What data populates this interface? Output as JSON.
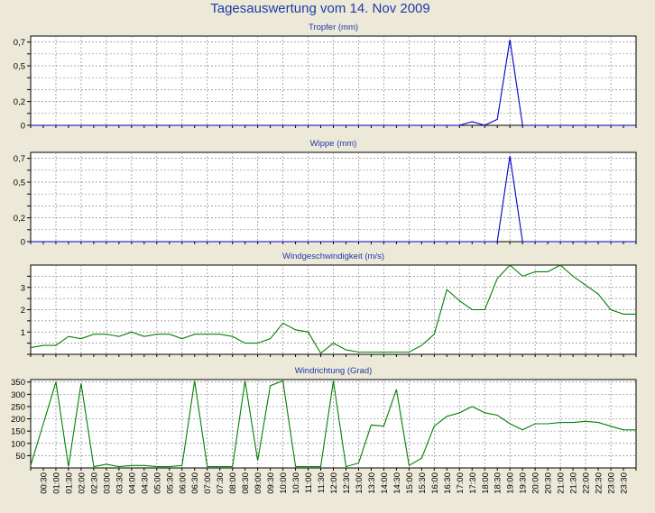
{
  "page": {
    "title": "Tagesauswertung vom 14. Nov 2009"
  },
  "colors": {
    "background": "#ece9d8",
    "plot_background": "#ffffff",
    "grid": "#888888",
    "axis": "#000000",
    "title_text": "#1f3aa8",
    "series_blue": "#0000cc",
    "series_green": "#008000"
  },
  "time_labels": [
    "00:30",
    "01:00",
    "01:30",
    "02:00",
    "02:30",
    "03:00",
    "03:30",
    "04:00",
    "04:30",
    "05:00",
    "05:30",
    "06:00",
    "06:30",
    "07:00",
    "07:30",
    "08:00",
    "08:30",
    "09:00",
    "09:30",
    "10:00",
    "10:30",
    "11:00",
    "11:30",
    "12:00",
    "12:30",
    "13:00",
    "13:30",
    "14:00",
    "14:30",
    "15:00",
    "15:30",
    "16:00",
    "16:30",
    "17:00",
    "17:30",
    "18:00",
    "18:30",
    "19:00",
    "19:30",
    "20:00",
    "20:30",
    "21:00",
    "21:30",
    "22:00",
    "22:30",
    "23:00",
    "23:30"
  ],
  "chart_data": [
    {
      "type": "line",
      "title": "Tropfer (mm)",
      "ylim": [
        0,
        0.75
      ],
      "yticks": [
        0,
        0.1,
        0.2,
        0.3,
        0.4,
        0.5,
        0.6,
        0.7
      ],
      "ytick_labels": [
        "0",
        "",
        "0,2",
        "",
        "",
        "0,5",
        "",
        "0,7"
      ],
      "grid": true,
      "color": "#0000cc",
      "x": [
        "00:00",
        "00:30",
        "01:00",
        "01:30",
        "02:00",
        "02:30",
        "03:00",
        "03:30",
        "04:00",
        "04:30",
        "05:00",
        "05:30",
        "06:00",
        "06:30",
        "07:00",
        "07:30",
        "08:00",
        "08:30",
        "09:00",
        "09:30",
        "10:00",
        "10:30",
        "11:00",
        "11:30",
        "12:00",
        "12:30",
        "13:00",
        "13:30",
        "14:00",
        "14:30",
        "15:00",
        "15:30",
        "16:00",
        "16:30",
        "17:00",
        "17:30",
        "18:00",
        "18:30",
        "19:00",
        "19:30",
        "20:00",
        "20:30",
        "21:00",
        "21:30",
        "22:00",
        "22:30",
        "23:00",
        "23:30",
        "24:00"
      ],
      "values": [
        0,
        0,
        0,
        0,
        0,
        0,
        0,
        0,
        0,
        0,
        0,
        0,
        0,
        0,
        0,
        0,
        0,
        0,
        0,
        0,
        0,
        0,
        0,
        0,
        0,
        0,
        0,
        0,
        0,
        0,
        0,
        0,
        0,
        0,
        0,
        0.03,
        0,
        0.05,
        0.72,
        0,
        0,
        0,
        0,
        0,
        0,
        0,
        0,
        0,
        0
      ]
    },
    {
      "type": "line",
      "title": "Wippe (mm)",
      "ylim": [
        0,
        0.75
      ],
      "yticks": [
        0,
        0.1,
        0.2,
        0.3,
        0.4,
        0.5,
        0.6,
        0.7
      ],
      "ytick_labels": [
        "0",
        "",
        "0,2",
        "",
        "",
        "0,5",
        "",
        "0,7"
      ],
      "grid": true,
      "color": "#0000cc",
      "x": [
        "00:00",
        "00:30",
        "01:00",
        "01:30",
        "02:00",
        "02:30",
        "03:00",
        "03:30",
        "04:00",
        "04:30",
        "05:00",
        "05:30",
        "06:00",
        "06:30",
        "07:00",
        "07:30",
        "08:00",
        "08:30",
        "09:00",
        "09:30",
        "10:00",
        "10:30",
        "11:00",
        "11:30",
        "12:00",
        "12:30",
        "13:00",
        "13:30",
        "14:00",
        "14:30",
        "15:00",
        "15:30",
        "16:00",
        "16:30",
        "17:00",
        "17:30",
        "18:00",
        "18:30",
        "19:00",
        "19:30",
        "20:00",
        "20:30",
        "21:00",
        "21:30",
        "22:00",
        "22:30",
        "23:00",
        "23:30",
        "24:00"
      ],
      "values": [
        0,
        0,
        0,
        0,
        0,
        0,
        0,
        0,
        0,
        0,
        0,
        0,
        0,
        0,
        0,
        0,
        0,
        0,
        0,
        0,
        0,
        0,
        0,
        0,
        0,
        0,
        0,
        0,
        0,
        0,
        0,
        0,
        0,
        0,
        0,
        0,
        0,
        0,
        0.72,
        0,
        0,
        0,
        0,
        0,
        0,
        0,
        0,
        0,
        0
      ]
    },
    {
      "type": "line",
      "title": "Windgeschwindigkeit (m/s)",
      "ylim": [
        0,
        4
      ],
      "yticks": [
        0,
        0.5,
        1,
        1.5,
        2,
        2.5,
        3,
        3.5
      ],
      "ytick_labels": [
        "",
        "",
        "1",
        "",
        "2",
        "",
        "3",
        ""
      ],
      "grid": true,
      "color": "#008000",
      "x": [
        "00:00",
        "00:30",
        "01:00",
        "01:30",
        "02:00",
        "02:30",
        "03:00",
        "03:30",
        "04:00",
        "04:30",
        "05:00",
        "05:30",
        "06:00",
        "06:30",
        "07:00",
        "07:30",
        "08:00",
        "08:30",
        "09:00",
        "09:30",
        "10:00",
        "10:30",
        "11:00",
        "11:30",
        "12:00",
        "12:30",
        "13:00",
        "13:30",
        "14:00",
        "14:30",
        "15:00",
        "15:30",
        "16:00",
        "16:30",
        "17:00",
        "17:30",
        "18:00",
        "18:30",
        "19:00",
        "19:30",
        "20:00",
        "20:30",
        "21:00",
        "21:30",
        "22:00",
        "22:30",
        "23:00",
        "23:30",
        "24:00"
      ],
      "values": [
        0.3,
        0.4,
        0.4,
        0.8,
        0.7,
        0.9,
        0.9,
        0.8,
        1.0,
        0.8,
        0.9,
        0.9,
        0.7,
        0.9,
        0.9,
        0.9,
        0.8,
        0.5,
        0.5,
        0.7,
        1.4,
        1.1,
        1.0,
        0.05,
        0.5,
        0.2,
        0.1,
        0.1,
        0.1,
        0.1,
        0.1,
        0.4,
        0.9,
        2.9,
        2.4,
        2.0,
        2.0,
        3.4,
        4.0,
        3.5,
        3.7,
        3.7,
        4.0,
        3.5,
        3.1,
        2.7,
        2.0,
        1.8,
        1.8
      ]
    },
    {
      "type": "line",
      "title": "Windrichtung (Grad)",
      "ylim": [
        0,
        360
      ],
      "yticks": [
        50,
        100,
        150,
        200,
        250,
        300,
        350
      ],
      "ytick_labels": [
        "50",
        "100",
        "150",
        "200",
        "250",
        "300",
        "350"
      ],
      "grid": true,
      "color": "#008000",
      "x": [
        "00:00",
        "00:30",
        "01:00",
        "01:30",
        "02:00",
        "02:30",
        "03:00",
        "03:30",
        "04:00",
        "04:30",
        "05:00",
        "05:30",
        "06:00",
        "06:30",
        "07:00",
        "07:30",
        "08:00",
        "08:30",
        "09:00",
        "09:30",
        "10:00",
        "10:30",
        "11:00",
        "11:30",
        "12:00",
        "12:30",
        "13:00",
        "13:30",
        "14:00",
        "14:30",
        "15:00",
        "15:30",
        "16:00",
        "16:30",
        "17:00",
        "17:30",
        "18:00",
        "18:30",
        "19:00",
        "19:30",
        "20:00",
        "20:30",
        "21:00",
        "21:30",
        "22:00",
        "22:30",
        "23:00",
        "23:30",
        "24:00"
      ],
      "values": [
        10,
        180,
        350,
        5,
        345,
        5,
        15,
        5,
        10,
        10,
        5,
        5,
        10,
        355,
        5,
        5,
        5,
        355,
        30,
        335,
        355,
        5,
        5,
        5,
        355,
        5,
        20,
        175,
        170,
        320,
        10,
        40,
        170,
        210,
        225,
        250,
        225,
        215,
        180,
        155,
        180,
        180,
        185,
        185,
        190,
        185,
        170,
        155,
        155
      ]
    }
  ]
}
